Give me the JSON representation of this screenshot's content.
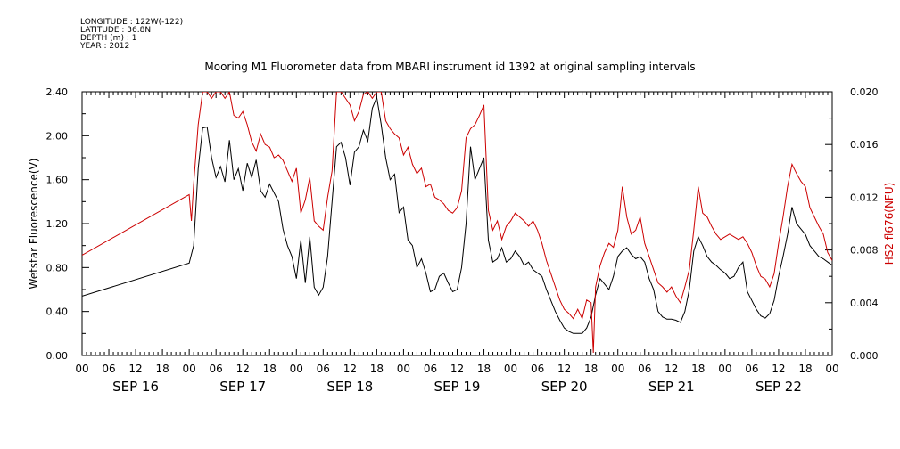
{
  "header": {
    "longitude": "LONGITUDE : 122W(-122)",
    "latitude": "LATITUDE : 36.8N",
    "depth": "DEPTH (m) : 1",
    "year": "YEAR : 2012"
  },
  "chart_data": {
    "type": "line",
    "title": "Mooring M1 Fluorometer data from MBARI instrument id 1392 at original sampling intervals",
    "xlabel": "",
    "ylabel": "Wetstar Fluorescence(V)",
    "y2label": "HS2 fl676(NFU)",
    "xlim_hours": [
      0,
      168
    ],
    "ylim": [
      0,
      2.4
    ],
    "y2lim": [
      0,
      0.02
    ],
    "yticks": [
      "0.00",
      "0.40",
      "0.80",
      "1.20",
      "1.60",
      "2.00",
      "2.40"
    ],
    "y2ticks": [
      "0.000",
      "0.004",
      "0.008",
      "0.012",
      "0.016",
      "0.020"
    ],
    "x_hour_labels": [
      "00",
      "06",
      "12",
      "18",
      "00",
      "06",
      "12",
      "18",
      "00",
      "06",
      "12",
      "18",
      "00",
      "06",
      "12",
      "18",
      "00",
      "06",
      "12",
      "18",
      "00",
      "06",
      "12",
      "18",
      "00",
      "06",
      "12",
      "18",
      "00"
    ],
    "x_day_labels": [
      "SEP 16",
      "SEP 17",
      "SEP 18",
      "SEP 19",
      "SEP 20",
      "SEP 21",
      "SEP 22"
    ],
    "grid": false,
    "colors": {
      "series1": "#000000",
      "series2": "#cc0000"
    },
    "series": [
      {
        "axis": "left",
        "color": "#000000",
        "points": [
          [
            0,
            0.54
          ],
          [
            24,
            0.84
          ],
          [
            25,
            1.0
          ],
          [
            26,
            1.7
          ],
          [
            27,
            2.07
          ],
          [
            28,
            2.08
          ],
          [
            29,
            1.8
          ],
          [
            30,
            1.62
          ],
          [
            31,
            1.72
          ],
          [
            32,
            1.58
          ],
          [
            33,
            1.96
          ],
          [
            34,
            1.6
          ],
          [
            35,
            1.7
          ],
          [
            36,
            1.5
          ],
          [
            37,
            1.75
          ],
          [
            38,
            1.62
          ],
          [
            39,
            1.78
          ],
          [
            40,
            1.5
          ],
          [
            41,
            1.44
          ],
          [
            42,
            1.56
          ],
          [
            43,
            1.48
          ],
          [
            44,
            1.4
          ],
          [
            45,
            1.15
          ],
          [
            46,
            1.0
          ],
          [
            47,
            0.9
          ],
          [
            48,
            0.7
          ],
          [
            49,
            1.05
          ],
          [
            50,
            0.66
          ],
          [
            51,
            1.08
          ],
          [
            52,
            0.62
          ],
          [
            53,
            0.55
          ],
          [
            54,
            0.62
          ],
          [
            55,
            0.9
          ],
          [
            56,
            1.4
          ],
          [
            57,
            1.9
          ],
          [
            58,
            1.94
          ],
          [
            59,
            1.8
          ],
          [
            60,
            1.55
          ],
          [
            61,
            1.85
          ],
          [
            62,
            1.9
          ],
          [
            63,
            2.05
          ],
          [
            64,
            1.95
          ],
          [
            65,
            2.25
          ],
          [
            66,
            2.35
          ],
          [
            67,
            2.1
          ],
          [
            68,
            1.8
          ],
          [
            69,
            1.6
          ],
          [
            70,
            1.65
          ],
          [
            71,
            1.3
          ],
          [
            72,
            1.35
          ],
          [
            73,
            1.05
          ],
          [
            74,
            1.0
          ],
          [
            75,
            0.8
          ],
          [
            76,
            0.88
          ],
          [
            77,
            0.75
          ],
          [
            78,
            0.58
          ],
          [
            79,
            0.6
          ],
          [
            80,
            0.72
          ],
          [
            81,
            0.75
          ],
          [
            82,
            0.66
          ],
          [
            83,
            0.58
          ],
          [
            84,
            0.6
          ],
          [
            85,
            0.8
          ],
          [
            86,
            1.2
          ],
          [
            87,
            1.9
          ],
          [
            88,
            1.6
          ],
          [
            89,
            1.7
          ],
          [
            90,
            1.8
          ],
          [
            91,
            1.05
          ],
          [
            92,
            0.85
          ],
          [
            93,
            0.88
          ],
          [
            94,
            0.98
          ],
          [
            95,
            0.85
          ],
          [
            96,
            0.88
          ],
          [
            97,
            0.95
          ],
          [
            98,
            0.9
          ],
          [
            99,
            0.82
          ],
          [
            100,
            0.85
          ],
          [
            101,
            0.78
          ],
          [
            102,
            0.75
          ],
          [
            103,
            0.72
          ],
          [
            104,
            0.6
          ],
          [
            105,
            0.5
          ],
          [
            106,
            0.4
          ],
          [
            107,
            0.32
          ],
          [
            108,
            0.25
          ],
          [
            109,
            0.22
          ],
          [
            110,
            0.2
          ],
          [
            111,
            0.2
          ],
          [
            112,
            0.2
          ],
          [
            113,
            0.25
          ],
          [
            114,
            0.35
          ],
          [
            115,
            0.55
          ],
          [
            116,
            0.7
          ],
          [
            117,
            0.65
          ],
          [
            118,
            0.6
          ],
          [
            119,
            0.72
          ],
          [
            120,
            0.9
          ],
          [
            121,
            0.95
          ],
          [
            122,
            0.98
          ],
          [
            123,
            0.92
          ],
          [
            124,
            0.88
          ],
          [
            125,
            0.9
          ],
          [
            126,
            0.85
          ],
          [
            127,
            0.7
          ],
          [
            128,
            0.6
          ],
          [
            129,
            0.4
          ],
          [
            130,
            0.35
          ],
          [
            131,
            0.33
          ],
          [
            132,
            0.33
          ],
          [
            133,
            0.32
          ],
          [
            134,
            0.3
          ],
          [
            135,
            0.4
          ],
          [
            136,
            0.6
          ],
          [
            137,
            0.95
          ],
          [
            138,
            1.08
          ],
          [
            139,
            1.0
          ],
          [
            140,
            0.9
          ],
          [
            141,
            0.85
          ],
          [
            142,
            0.82
          ],
          [
            143,
            0.78
          ],
          [
            144,
            0.75
          ],
          [
            145,
            0.7
          ],
          [
            146,
            0.72
          ],
          [
            147,
            0.8
          ],
          [
            148,
            0.85
          ],
          [
            149,
            0.58
          ],
          [
            150,
            0.5
          ],
          [
            151,
            0.42
          ],
          [
            152,
            0.36
          ],
          [
            153,
            0.34
          ],
          [
            154,
            0.38
          ],
          [
            155,
            0.5
          ],
          [
            156,
            0.72
          ],
          [
            157,
            0.9
          ],
          [
            158,
            1.1
          ],
          [
            159,
            1.35
          ],
          [
            160,
            1.2
          ],
          [
            161,
            1.15
          ],
          [
            162,
            1.1
          ],
          [
            163,
            1.0
          ],
          [
            164,
            0.95
          ],
          [
            165,
            0.9
          ],
          [
            166,
            0.88
          ],
          [
            167,
            0.85
          ],
          [
            168,
            0.82
          ]
        ]
      },
      {
        "axis": "right",
        "color": "#cc0000",
        "points": [
          [
            0,
            0.0076
          ],
          [
            24,
            0.0122
          ],
          [
            24.5,
            0.0102
          ],
          [
            25,
            0.013
          ],
          [
            26,
            0.0175
          ],
          [
            27,
            0.02
          ],
          [
            28,
            0.02
          ],
          [
            29,
            0.0195
          ],
          [
            30,
            0.02
          ],
          [
            31,
            0.02
          ],
          [
            32,
            0.0195
          ],
          [
            33,
            0.02
          ],
          [
            34,
            0.0182
          ],
          [
            35,
            0.018
          ],
          [
            36,
            0.0185
          ],
          [
            37,
            0.0175
          ],
          [
            38,
            0.0162
          ],
          [
            39,
            0.0155
          ],
          [
            40,
            0.0168
          ],
          [
            41,
            0.016
          ],
          [
            42,
            0.0158
          ],
          [
            43,
            0.015
          ],
          [
            44,
            0.0152
          ],
          [
            45,
            0.0148
          ],
          [
            46,
            0.014
          ],
          [
            47,
            0.0132
          ],
          [
            48,
            0.0142
          ],
          [
            49,
            0.0108
          ],
          [
            50,
            0.0118
          ],
          [
            51,
            0.0135
          ],
          [
            52,
            0.0102
          ],
          [
            53,
            0.0098
          ],
          [
            54,
            0.0095
          ],
          [
            55,
            0.012
          ],
          [
            56,
            0.014
          ],
          [
            57,
            0.02
          ],
          [
            58,
            0.02
          ],
          [
            59,
            0.0195
          ],
          [
            60,
            0.019
          ],
          [
            61,
            0.0178
          ],
          [
            62,
            0.0185
          ],
          [
            63,
            0.0198
          ],
          [
            64,
            0.02
          ],
          [
            65,
            0.0195
          ],
          [
            66,
            0.02
          ],
          [
            67,
            0.02
          ],
          [
            68,
            0.0178
          ],
          [
            69,
            0.0172
          ],
          [
            70,
            0.0168
          ],
          [
            71,
            0.0165
          ],
          [
            72,
            0.0152
          ],
          [
            73,
            0.0158
          ],
          [
            74,
            0.0145
          ],
          [
            75,
            0.0138
          ],
          [
            76,
            0.0142
          ],
          [
            77,
            0.0128
          ],
          [
            78,
            0.013
          ],
          [
            79,
            0.012
          ],
          [
            80,
            0.0118
          ],
          [
            81,
            0.0115
          ],
          [
            82,
            0.011
          ],
          [
            83,
            0.0108
          ],
          [
            84,
            0.0112
          ],
          [
            85,
            0.0125
          ],
          [
            86,
            0.0165
          ],
          [
            87,
            0.0172
          ],
          [
            88,
            0.0175
          ],
          [
            89,
            0.0182
          ],
          [
            90,
            0.019
          ],
          [
            91,
            0.011
          ],
          [
            92,
            0.0095
          ],
          [
            93,
            0.0102
          ],
          [
            94,
            0.0088
          ],
          [
            95,
            0.0098
          ],
          [
            96,
            0.0102
          ],
          [
            97,
            0.0108
          ],
          [
            98,
            0.0105
          ],
          [
            99,
            0.0102
          ],
          [
            100,
            0.0098
          ],
          [
            101,
            0.0102
          ],
          [
            102,
            0.0095
          ],
          [
            103,
            0.0085
          ],
          [
            104,
            0.0072
          ],
          [
            105,
            0.0062
          ],
          [
            106,
            0.0052
          ],
          [
            107,
            0.0042
          ],
          [
            108,
            0.0035
          ],
          [
            109,
            0.0032
          ],
          [
            110,
            0.0028
          ],
          [
            111,
            0.0035
          ],
          [
            112,
            0.0028
          ],
          [
            113,
            0.0042
          ],
          [
            114,
            0.004
          ],
          [
            114.5,
            0.0002
          ],
          [
            115,
            0.0052
          ],
          [
            116,
            0.0068
          ],
          [
            117,
            0.0078
          ],
          [
            118,
            0.0085
          ],
          [
            119,
            0.0082
          ],
          [
            120,
            0.0095
          ],
          [
            121,
            0.0128
          ],
          [
            122,
            0.0105
          ],
          [
            123,
            0.0092
          ],
          [
            124,
            0.0095
          ],
          [
            125,
            0.0105
          ],
          [
            126,
            0.0085
          ],
          [
            127,
            0.0075
          ],
          [
            128,
            0.0065
          ],
          [
            129,
            0.0055
          ],
          [
            130,
            0.0052
          ],
          [
            131,
            0.0048
          ],
          [
            132,
            0.0052
          ],
          [
            133,
            0.0045
          ],
          [
            134,
            0.004
          ],
          [
            135,
            0.0052
          ],
          [
            136,
            0.0065
          ],
          [
            137,
            0.0095
          ],
          [
            138,
            0.0128
          ],
          [
            139,
            0.0108
          ],
          [
            140,
            0.0105
          ],
          [
            141,
            0.0098
          ],
          [
            142,
            0.0092
          ],
          [
            143,
            0.0088
          ],
          [
            144,
            0.009
          ],
          [
            145,
            0.0092
          ],
          [
            146,
            0.009
          ],
          [
            147,
            0.0088
          ],
          [
            148,
            0.009
          ],
          [
            149,
            0.0085
          ],
          [
            150,
            0.0078
          ],
          [
            151,
            0.0068
          ],
          [
            152,
            0.006
          ],
          [
            153,
            0.0058
          ],
          [
            154,
            0.0052
          ],
          [
            155,
            0.0062
          ],
          [
            156,
            0.0085
          ],
          [
            157,
            0.0105
          ],
          [
            158,
            0.0128
          ],
          [
            159,
            0.0145
          ],
          [
            160,
            0.0138
          ],
          [
            161,
            0.0132
          ],
          [
            162,
            0.0128
          ],
          [
            163,
            0.0112
          ],
          [
            164,
            0.0105
          ],
          [
            165,
            0.0098
          ],
          [
            166,
            0.0092
          ],
          [
            167,
            0.0078
          ],
          [
            168,
            0.0072
          ]
        ]
      }
    ]
  }
}
